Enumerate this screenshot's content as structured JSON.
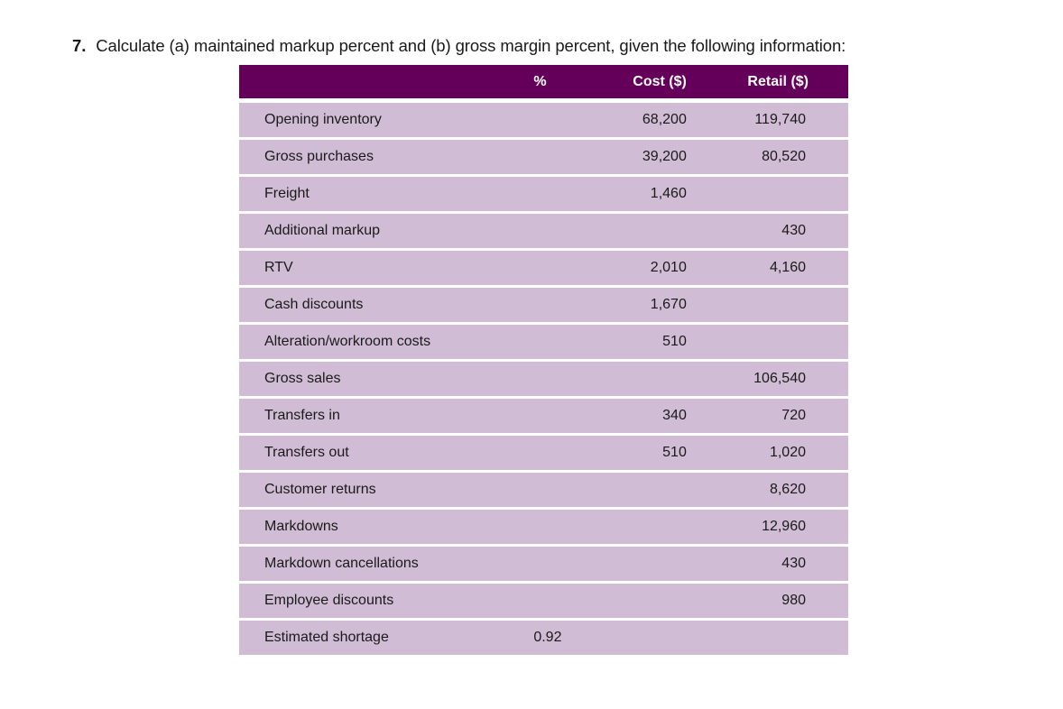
{
  "question": {
    "number": "7.",
    "text": "Calculate (a) maintained markup percent and (b) gross margin percent, given the following information:"
  },
  "table": {
    "headers": [
      "",
      "%",
      "Cost ($)",
      "Retail ($)"
    ],
    "rows": [
      {
        "label": "Opening inventory",
        "pct": "",
        "cost": "68,200",
        "retail": "119,740"
      },
      {
        "label": "Gross purchases",
        "pct": "",
        "cost": "39,200",
        "retail": "80,520"
      },
      {
        "label": "Freight",
        "pct": "",
        "cost": "1,460",
        "retail": ""
      },
      {
        "label": "Additional markup",
        "pct": "",
        "cost": "",
        "retail": "430"
      },
      {
        "label": "RTV",
        "pct": "",
        "cost": "2,010",
        "retail": "4,160"
      },
      {
        "label": "Cash discounts",
        "pct": "",
        "cost": "1,670",
        "retail": ""
      },
      {
        "label": "Alteration/workroom costs",
        "pct": "",
        "cost": "510",
        "retail": ""
      },
      {
        "label": "Gross sales",
        "pct": "",
        "cost": "",
        "retail": "106,540"
      },
      {
        "label": "Transfers in",
        "pct": "",
        "cost": "340",
        "retail": "720"
      },
      {
        "label": "Transfers out",
        "pct": "",
        "cost": "510",
        "retail": "1,020"
      },
      {
        "label": "Customer returns",
        "pct": "",
        "cost": "",
        "retail": "8,620"
      },
      {
        "label": "Markdowns",
        "pct": "",
        "cost": "",
        "retail": "12,960"
      },
      {
        "label": "Markdown cancellations",
        "pct": "",
        "cost": "",
        "retail": "430"
      },
      {
        "label": "Employee discounts",
        "pct": "",
        "cost": "",
        "retail": "980"
      },
      {
        "label": "Estimated shortage",
        "pct": "0.92",
        "cost": "",
        "retail": ""
      }
    ]
  },
  "colors": {
    "header_bg": "#65005A",
    "row_bg": "#D0BCD4"
  }
}
